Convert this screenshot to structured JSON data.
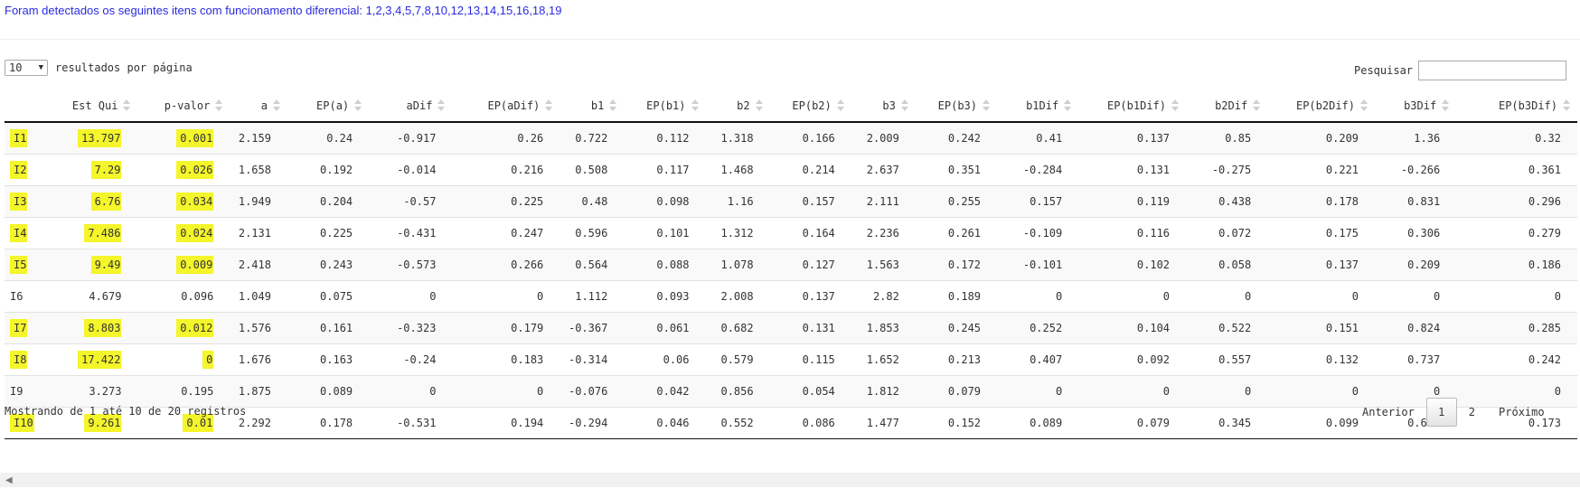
{
  "notice": "Foram detectados os seguintes itens com funcionamento diferencial: 1,2,3,4,5,7,8,10,12,13,14,15,16,18,19",
  "length_select_value": "10",
  "length_label": "resultados por página",
  "search_label": "Pesquisar",
  "search_value": "",
  "columns": [
    "",
    "Est Qui",
    "p-valor",
    "a",
    "EP(a)",
    "aDif",
    "EP(aDif)",
    "b1",
    "EP(b1)",
    "b2",
    "EP(b2)",
    "b3",
    "EP(b3)",
    "b1Dif",
    "EP(b1Dif)",
    "b2Dif",
    "EP(b2Dif)",
    "b3Dif",
    "EP(b3Dif)"
  ],
  "rows": [
    {
      "highlight": true,
      "cells": [
        "I1",
        "13.797",
        "0.001",
        "2.159",
        "0.24",
        "-0.917",
        "0.26",
        "0.722",
        "0.112",
        "1.318",
        "0.166",
        "2.009",
        "0.242",
        "0.41",
        "0.137",
        "0.85",
        "0.209",
        "1.36",
        "0.32"
      ]
    },
    {
      "highlight": true,
      "cells": [
        "I2",
        "7.29",
        "0.026",
        "1.658",
        "0.192",
        "-0.014",
        "0.216",
        "0.508",
        "0.117",
        "1.468",
        "0.214",
        "2.637",
        "0.351",
        "-0.284",
        "0.131",
        "-0.275",
        "0.221",
        "-0.266",
        "0.361"
      ]
    },
    {
      "highlight": true,
      "cells": [
        "I3",
        "6.76",
        "0.034",
        "1.949",
        "0.204",
        "-0.57",
        "0.225",
        "0.48",
        "0.098",
        "1.16",
        "0.157",
        "2.111",
        "0.255",
        "0.157",
        "0.119",
        "0.438",
        "0.178",
        "0.831",
        "0.296"
      ]
    },
    {
      "highlight": true,
      "cells": [
        "I4",
        "7.486",
        "0.024",
        "2.131",
        "0.225",
        "-0.431",
        "0.247",
        "0.596",
        "0.101",
        "1.312",
        "0.164",
        "2.236",
        "0.261",
        "-0.109",
        "0.116",
        "0.072",
        "0.175",
        "0.306",
        "0.279"
      ]
    },
    {
      "highlight": true,
      "cells": [
        "I5",
        "9.49",
        "0.009",
        "2.418",
        "0.243",
        "-0.573",
        "0.266",
        "0.564",
        "0.088",
        "1.078",
        "0.127",
        "1.563",
        "0.172",
        "-0.101",
        "0.102",
        "0.058",
        "0.137",
        "0.209",
        "0.186"
      ]
    },
    {
      "highlight": false,
      "cells": [
        "I6",
        "4.679",
        "0.096",
        "1.049",
        "0.075",
        "0",
        "0",
        "1.112",
        "0.093",
        "2.008",
        "0.137",
        "2.82",
        "0.189",
        "0",
        "0",
        "0",
        "0",
        "0",
        "0"
      ]
    },
    {
      "highlight": true,
      "cells": [
        "I7",
        "8.803",
        "0.012",
        "1.576",
        "0.161",
        "-0.323",
        "0.179",
        "-0.367",
        "0.061",
        "0.682",
        "0.131",
        "1.853",
        "0.245",
        "0.252",
        "0.104",
        "0.522",
        "0.151",
        "0.824",
        "0.285"
      ]
    },
    {
      "highlight": true,
      "cells": [
        "I8",
        "17.422",
        "0",
        "1.676",
        "0.163",
        "-0.24",
        "0.183",
        "-0.314",
        "0.06",
        "0.579",
        "0.115",
        "1.652",
        "0.213",
        "0.407",
        "0.092",
        "0.557",
        "0.132",
        "0.737",
        "0.242"
      ]
    },
    {
      "highlight": false,
      "cells": [
        "I9",
        "3.273",
        "0.195",
        "1.875",
        "0.089",
        "0",
        "0",
        "-0.076",
        "0.042",
        "0.856",
        "0.054",
        "1.812",
        "0.079",
        "0",
        "0",
        "0",
        "0",
        "0",
        "0"
      ]
    },
    {
      "highlight": true,
      "cells": [
        "I10",
        "9.261",
        "0.01",
        "2.292",
        "0.178",
        "-0.531",
        "0.194",
        "-0.294",
        "0.046",
        "0.552",
        "0.086",
        "1.477",
        "0.152",
        "0.089",
        "0.079",
        "0.345",
        "0.099",
        "0.624",
        "0.173"
      ]
    }
  ],
  "info": "Mostrando de 1 até 10 de 20 registros",
  "pagination": {
    "previous": "Anterior",
    "page1": "1",
    "page2": "2",
    "next": "Próximo"
  },
  "colors": {
    "highlight": "#f4f52a",
    "notice_text": "#2a2ae0"
  },
  "icons": {
    "select_arrow": "▼",
    "scroll_left": "◀"
  }
}
